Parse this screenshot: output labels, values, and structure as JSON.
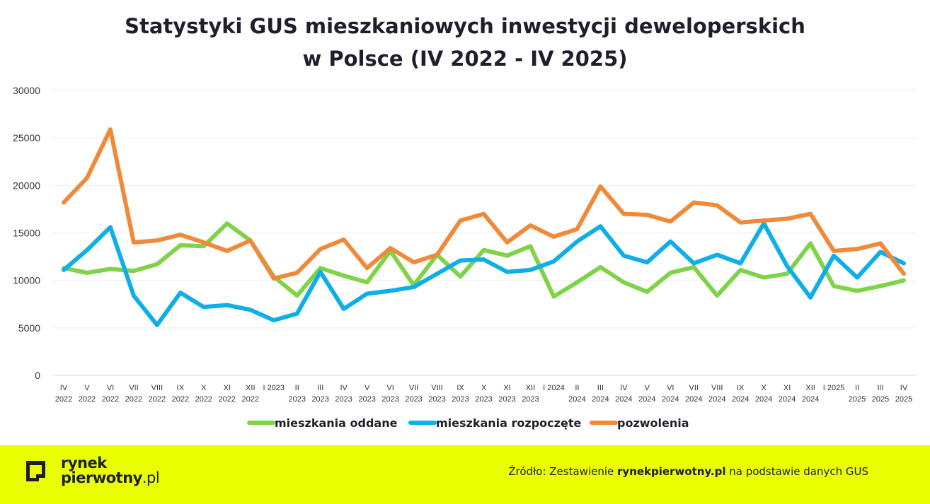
{
  "title_line1": "Statystyki GUS mieszkaniowych inwestycji deweloperskich",
  "title_line2": "w Polsce (IV 2022 - IV 2025)",
  "colors": {
    "oddane": "#7ed348",
    "rozpoczete": "#0eaee8",
    "pozwolenia": "#f08a3a",
    "footer_bg": "#eaff00",
    "text": "#1f1f2b"
  },
  "chart_data": {
    "type": "line",
    "title": "Statystyki GUS mieszkaniowych inwestycji deweloperskich w Polsce (IV 2022 - IV 2025)",
    "ylim": [
      0,
      30000
    ],
    "yticks": [
      0,
      5000,
      10000,
      15000,
      20000,
      25000,
      30000
    ],
    "grid": true,
    "legend_position": "bottom",
    "categories": [
      [
        "IV",
        "2022"
      ],
      [
        "V",
        "2022"
      ],
      [
        "VI",
        "2022"
      ],
      [
        "VII",
        "2022"
      ],
      [
        "VIII",
        "2022"
      ],
      [
        "IX",
        "2022"
      ],
      [
        "X",
        "2022"
      ],
      [
        "XI",
        "2022"
      ],
      [
        "XII",
        "2022"
      ],
      [
        "I 2023",
        ""
      ],
      [
        "II",
        "2023"
      ],
      [
        "III",
        "2023"
      ],
      [
        "IV",
        "2023"
      ],
      [
        "V",
        "2023"
      ],
      [
        "VI",
        "2023"
      ],
      [
        "VII",
        "2023"
      ],
      [
        "VIII",
        "2023"
      ],
      [
        "IX",
        "2023"
      ],
      [
        "X",
        "2023"
      ],
      [
        "XI",
        "2023"
      ],
      [
        "XII",
        "2023"
      ],
      [
        "I 2024",
        ""
      ],
      [
        "II",
        "2024"
      ],
      [
        "III",
        "2024"
      ],
      [
        "IV",
        "2024"
      ],
      [
        "V",
        "2024"
      ],
      [
        "VI",
        "2024"
      ],
      [
        "VII",
        "2024"
      ],
      [
        "VIII",
        "2024"
      ],
      [
        "IX",
        "2024"
      ],
      [
        "X",
        "2024"
      ],
      [
        "XI",
        "2024"
      ],
      [
        "XII",
        "2024"
      ],
      [
        "I 2025",
        ""
      ],
      [
        "II",
        "2025"
      ],
      [
        "III",
        "2025"
      ],
      [
        "IV",
        "2025"
      ]
    ],
    "series": [
      {
        "name": "mieszkania oddane",
        "color": "#7ed348",
        "values": [
          11300,
          10800,
          11200,
          11000,
          11700,
          13700,
          13600,
          16000,
          14200,
          10400,
          8400,
          11300,
          10500,
          9800,
          13100,
          9500,
          12700,
          10400,
          13200,
          12600,
          13600,
          8300,
          9800,
          11400,
          9800,
          8800,
          10800,
          11400,
          8400,
          11100,
          10300,
          10700,
          13900,
          9400,
          8900,
          9400,
          10000
        ]
      },
      {
        "name": "mieszkania rozpoczęte",
        "color": "#0eaee8",
        "values": [
          11100,
          13200,
          15600,
          8400,
          5300,
          8700,
          7200,
          7400,
          6900,
          5800,
          6500,
          10900,
          7000,
          8600,
          8900,
          9300,
          10700,
          12100,
          12200,
          10900,
          11100,
          12000,
          14100,
          15700,
          12600,
          11900,
          14100,
          11800,
          12700,
          11800,
          16000,
          11500,
          8200,
          12600,
          10300,
          13000,
          11800
        ]
      },
      {
        "name": "pozwolenia",
        "color": "#f08a3a",
        "values": [
          18200,
          20800,
          25900,
          14000,
          14200,
          14800,
          14000,
          13100,
          14200,
          10200,
          10800,
          13300,
          14300,
          11300,
          13400,
          11900,
          12700,
          16300,
          17000,
          14000,
          15800,
          14600,
          15400,
          19900,
          17000,
          16900,
          16200,
          18200,
          17900,
          16100,
          16300,
          16500,
          17000,
          13100,
          13300,
          13900,
          10700
        ]
      }
    ]
  },
  "footer": {
    "logo_line1": "rynek",
    "logo_line2": "pierwotny",
    "logo_suffix": ".pl",
    "source_prefix": "Źródło: Zestawienie ",
    "source_site": "rynekpierwotny.pl",
    "source_suffix": " na podstawie danych GUS"
  }
}
